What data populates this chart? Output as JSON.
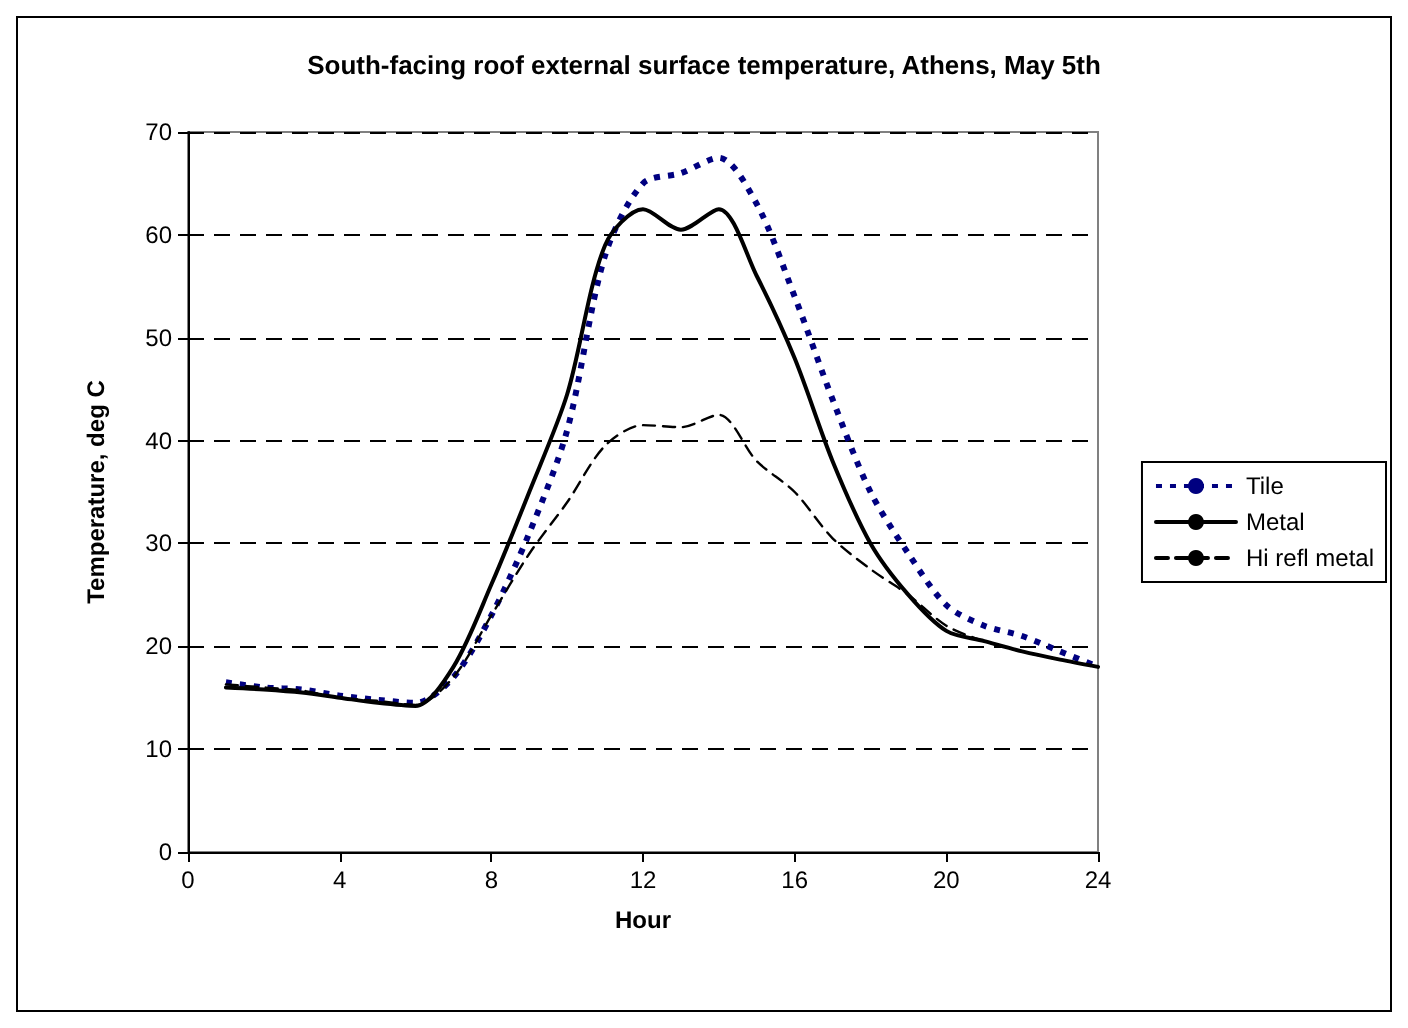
{
  "chart_data": {
    "type": "line",
    "title": "South-facing roof external surface temperature, Athens, May 5th",
    "xlabel": "Hour",
    "ylabel": "Temperature, deg C",
    "x": [
      1,
      2,
      3,
      4,
      5,
      6,
      7,
      8,
      9,
      10,
      11,
      12,
      13,
      14,
      15,
      16,
      17,
      18,
      19,
      20,
      21,
      22,
      23,
      24
    ],
    "series": [
      {
        "name": "Tile",
        "color": "#000080",
        "line_style": "dotted",
        "values": [
          16.5,
          16,
          15.8,
          15.2,
          14.8,
          14.5,
          17,
          23,
          31,
          41,
          58,
          65,
          66,
          67.5,
          63,
          54,
          44,
          35,
          29,
          24,
          22,
          21,
          19.5,
          18
        ]
      },
      {
        "name": "Metal",
        "color": "#000000",
        "line_style": "solid",
        "values": [
          16,
          15.8,
          15.5,
          15,
          14.5,
          14.2,
          18,
          26,
          35,
          44.5,
          59,
          62.5,
          60.5,
          62.5,
          56,
          48,
          38,
          30,
          25,
          21.5,
          20.5,
          19.5,
          18.7,
          18
        ]
      },
      {
        "name": "Hi refl metal",
        "color": "#000000",
        "line_style": "dashed",
        "values": [
          16.3,
          16,
          15.7,
          15,
          14.7,
          14.3,
          17,
          23,
          29,
          34,
          39.5,
          41.5,
          41.3,
          42.5,
          38,
          35,
          30.5,
          27.5,
          25,
          22,
          20.5,
          19.5,
          18.7,
          18
        ]
      }
    ],
    "xlim": [
      0,
      24
    ],
    "xticks": [
      0,
      4,
      8,
      12,
      16,
      20,
      24
    ],
    "ylim": [
      0,
      70
    ],
    "yticks": [
      0,
      10,
      20,
      30,
      40,
      50,
      60,
      70
    ],
    "grid": "y",
    "legend": "right",
    "marker": "none"
  }
}
